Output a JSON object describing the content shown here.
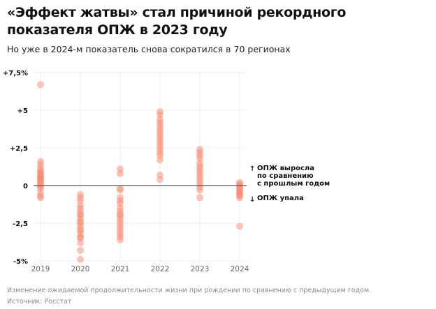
{
  "title": "«Эффект жатвы» стал причиной рекордного показателя ОПЖ в 2023 году",
  "subtitle": "Но уже в 2024-м показатель снова сократился в 70 регионах",
  "footnote": "Изменение ожидаемой продолжительности жизни при рождении по сравнению с предыдущим годом.",
  "source": "Источник: Росстат",
  "chart_data": {
    "type": "scatter",
    "categories": [
      "2019",
      "2020",
      "2021",
      "2022",
      "2023",
      "2024"
    ],
    "ylim": [
      -5,
      7.5
    ],
    "yticks": [
      -5,
      -2.5,
      0,
      2.5,
      5,
      7.5
    ],
    "ytick_labels": [
      "-5%",
      "-2,5",
      "0",
      "+2,5",
      "+5",
      "+7,5%"
    ],
    "grid": true,
    "color": "#f9896f",
    "annotations": {
      "up": "ОПЖ выросла",
      "up2": "по сравнению",
      "up3": "с прошлым годом",
      "down": "ОПЖ упала"
    },
    "series": [
      {
        "category": "2019",
        "values": [
          6.7,
          1.6,
          1.4,
          1.2,
          1.0,
          0.9,
          0.8,
          0.7,
          0.6,
          0.5,
          0.5,
          0.4,
          0.3,
          0.2,
          0.1,
          0.0,
          -0.1,
          -0.2,
          -0.5,
          -0.7,
          -0.8
        ]
      },
      {
        "category": "2020",
        "values": [
          -0.6,
          -0.8,
          -1.0,
          -1.3,
          -1.5,
          -1.7,
          -1.9,
          -2.0,
          -2.2,
          -2.4,
          -2.5,
          -2.7,
          -2.9,
          -3.0,
          -3.2,
          -3.4,
          -3.5,
          -3.8,
          -4.3,
          -4.9
        ]
      },
      {
        "category": "2021",
        "values": [
          1.1,
          0.8,
          -0.2,
          -0.3,
          -0.8,
          -1.0,
          -1.2,
          -1.5,
          -1.7,
          -1.9,
          -2.0,
          -2.2,
          -2.4,
          -2.6,
          -2.8,
          -3.0,
          -3.2,
          -3.4,
          -3.6
        ]
      },
      {
        "category": "2022",
        "values": [
          4.9,
          4.7,
          4.4,
          4.2,
          4.0,
          3.8,
          3.6,
          3.4,
          3.2,
          3.0,
          2.8,
          2.6,
          2.4,
          2.2,
          2.0,
          1.7,
          0.7,
          0.4
        ]
      },
      {
        "category": "2023",
        "values": [
          2.4,
          2.2,
          2.0,
          1.8,
          1.5,
          1.3,
          1.1,
          0.9,
          0.7,
          0.5,
          0.3,
          0.1,
          -0.1,
          -0.3,
          -0.8
        ]
      },
      {
        "category": "2024",
        "values": [
          0.2,
          0.1,
          0.0,
          -0.1,
          -0.2,
          -0.3,
          -0.4,
          -0.5,
          -0.6,
          -0.7,
          -0.8,
          -2.7
        ]
      }
    ]
  }
}
